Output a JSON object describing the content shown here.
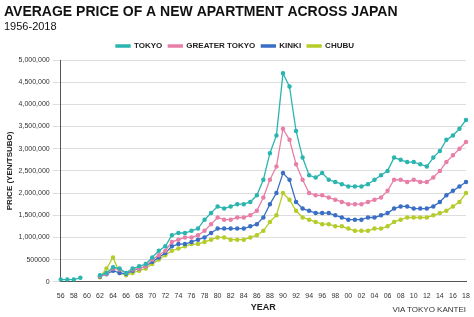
{
  "chart_data": {
    "type": "line",
    "title": "AVERAGE PRICE OF A NEW APARTMENT ACROSS JAPAN",
    "subtitle": "1956-2018",
    "x_label": "YEAR",
    "y_label": "PRICE (YEN/TSUBO)",
    "annotation": "VIA TOKYO KANTEI",
    "legend": "top",
    "grid": true,
    "marker": "circle",
    "categories": [
      "56",
      null,
      "58",
      null,
      "60",
      null,
      "62",
      null,
      "64",
      null,
      "66",
      null,
      "68",
      null,
      "70",
      null,
      "72",
      null,
      "74",
      null,
      "76",
      null,
      "78",
      null,
      "80",
      null,
      "82",
      null,
      "84",
      null,
      "86",
      null,
      "88",
      null,
      "90",
      null,
      "92",
      null,
      "94",
      null,
      "96",
      null,
      "98",
      null,
      "00",
      null,
      "02",
      null,
      "04",
      null,
      "06",
      null,
      "08",
      null,
      "10",
      null,
      "12",
      null,
      "14",
      null,
      "16",
      null,
      "18"
    ],
    "ylim": [
      0,
      5000000
    ],
    "yticks": [
      0,
      500000,
      {
        "value": 1000000,
        "label": "1,000,000"
      },
      {
        "value": 1500000,
        "label": "1,500,000"
      },
      {
        "value": 2000000,
        "label": "2,000,000"
      },
      {
        "value": 2500000,
        "label": "2,500,000"
      },
      {
        "value": 3000000,
        "label": "3,000,000"
      },
      {
        "value": 3500000,
        "label": "3,500,000"
      },
      {
        "value": 4000000,
        "label": "4,000,000"
      },
      {
        "value": 4500000,
        "label": "4,500,000"
      },
      {
        "value": 5000000,
        "label": "5,000,000"
      }
    ],
    "series": [
      {
        "name": "TOKYO",
        "color": "#2bb5b0",
        "values": [
          50000,
          50000,
          50000,
          90000,
          null,
          null,
          150000,
          200000,
          330000,
          300000,
          200000,
          300000,
          350000,
          400000,
          550000,
          700000,
          800000,
          1050000,
          1100000,
          1100000,
          1150000,
          1200000,
          1400000,
          1550000,
          1700000,
          1650000,
          1700000,
          1750000,
          1750000,
          1800000,
          1950000,
          2300000,
          2900000,
          3300000,
          4700000,
          4400000,
          3400000,
          2800000,
          2400000,
          2350000,
          2450000,
          2300000,
          2250000,
          2200000,
          2150000,
          2150000,
          2150000,
          2200000,
          2300000,
          2400000,
          2500000,
          2800000,
          2750000,
          2700000,
          2700000,
          2650000,
          2600000,
          2800000,
          2950000,
          3200000,
          3300000,
          3450000,
          3650000
        ]
      },
      {
        "name": "GREATER TOKYO",
        "color": "#e87fa8",
        "values": [
          null,
          null,
          null,
          null,
          null,
          null,
          130000,
          180000,
          300000,
          280000,
          200000,
          280000,
          300000,
          350000,
          500000,
          600000,
          700000,
          900000,
          950000,
          1000000,
          1000000,
          1050000,
          1150000,
          1300000,
          1450000,
          1400000,
          1400000,
          1450000,
          1450000,
          1500000,
          1600000,
          1900000,
          2300000,
          2600000,
          3450000,
          3200000,
          2650000,
          2300000,
          2000000,
          1950000,
          1950000,
          1900000,
          1850000,
          1800000,
          1750000,
          1750000,
          1750000,
          1800000,
          1850000,
          1900000,
          2050000,
          2300000,
          2300000,
          2250000,
          2300000,
          2250000,
          2250000,
          2350000,
          2500000,
          2700000,
          2850000,
          3000000,
          3150000
        ]
      },
      {
        "name": "KINKI",
        "color": "#3a6fc4",
        "values": [
          null,
          null,
          null,
          null,
          null,
          null,
          120000,
          170000,
          250000,
          200000,
          180000,
          250000,
          300000,
          350000,
          450000,
          550000,
          650000,
          800000,
          850000,
          850000,
          900000,
          950000,
          1000000,
          1100000,
          1200000,
          1200000,
          1200000,
          1200000,
          1200000,
          1250000,
          1300000,
          1450000,
          1750000,
          2000000,
          2450000,
          2300000,
          1800000,
          1650000,
          1600000,
          1550000,
          1550000,
          1550000,
          1500000,
          1450000,
          1400000,
          1400000,
          1400000,
          1450000,
          1450000,
          1500000,
          1550000,
          1650000,
          1700000,
          1700000,
          1650000,
          1650000,
          1650000,
          1700000,
          1800000,
          1950000,
          2050000,
          2150000,
          2250000
        ]
      },
      {
        "name": "CHUBU",
        "color": "#b5cc2a",
        "values": [
          null,
          null,
          null,
          null,
          null,
          null,
          100000,
          300000,
          550000,
          200000,
          150000,
          200000,
          250000,
          300000,
          400000,
          500000,
          600000,
          700000,
          750000,
          800000,
          850000,
          850000,
          900000,
          950000,
          1000000,
          1000000,
          950000,
          950000,
          950000,
          1000000,
          1050000,
          1150000,
          1350000,
          1500000,
          2000000,
          1850000,
          1600000,
          1450000,
          1400000,
          1350000,
          1300000,
          1300000,
          1250000,
          1250000,
          1200000,
          1150000,
          1150000,
          1150000,
          1200000,
          1200000,
          1250000,
          1350000,
          1400000,
          1450000,
          1450000,
          1450000,
          1450000,
          1500000,
          1550000,
          1600000,
          1700000,
          1800000,
          2000000
        ]
      }
    ]
  }
}
